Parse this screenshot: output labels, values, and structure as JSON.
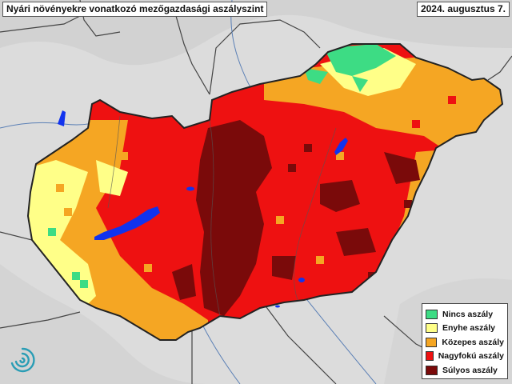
{
  "title": "Nyári növényekre vonatkozó mezőgazdasági aszályszint",
  "date": "2024. augusztus 7.",
  "legend": [
    {
      "label": "Nincs aszály",
      "color": "#3ddc84"
    },
    {
      "label": "Enyhe aszály",
      "color": "#ffff88"
    },
    {
      "label": "Közepes aszály",
      "color": "#f5a623"
    },
    {
      "label": "Nagyfokú aszály",
      "color": "#ee1111"
    },
    {
      "label": "Súlyos aszály",
      "color": "#7a0a0a"
    }
  ],
  "colors": {
    "background": "#dcdcdc",
    "border": "#333333",
    "water": "#1133ee",
    "river": "#4a6fa5",
    "logo": "#2a9db5"
  }
}
